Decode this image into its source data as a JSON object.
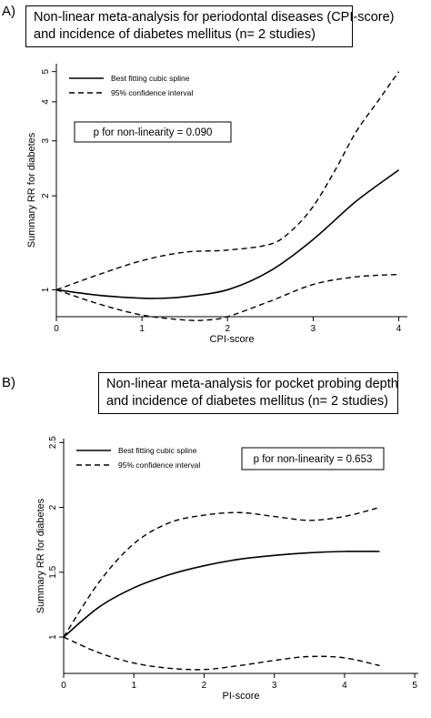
{
  "chart_data": [
    {
      "type": "line",
      "panel_label": "A)",
      "title_lines": [
        "Non-linear meta-analysis for periodontal diseases (CPI-score)",
        "and incidence of diabetes mellitus (n= 2 studies)"
      ],
      "xlabel": "CPI-score",
      "ylabel": "Summary RR for diabetes",
      "xlim": [
        0,
        4.1
      ],
      "ylim": [
        0.82,
        5.3
      ],
      "yscale": "log",
      "xticks": [
        0,
        1,
        2,
        3,
        4
      ],
      "yticks": [
        1,
        2,
        3,
        4,
        5
      ],
      "grid": false,
      "legend_placement": "top-left",
      "annotation": "p for non-linearity  =  0.090",
      "series": [
        {
          "name": "Best fitting cubic spline",
          "style": "solid",
          "x": [
            0,
            0.5,
            1,
            1.25,
            1.5,
            2,
            2.5,
            3,
            3.5,
            4
          ],
          "y": [
            1,
            0.96,
            0.94,
            0.94,
            0.95,
            1.0,
            1.15,
            1.45,
            1.92,
            2.42
          ]
        },
        {
          "name": "95% confidence interval",
          "style": "dashed",
          "x": [
            0,
            0.5,
            1,
            1.5,
            2,
            2.5,
            2.75,
            3,
            3.25,
            3.5,
            3.75,
            4
          ],
          "y": [
            1,
            1.12,
            1.24,
            1.32,
            1.34,
            1.4,
            1.55,
            1.85,
            2.4,
            3.2,
            4.0,
            5.0
          ]
        },
        {
          "name": "",
          "style": "dashed",
          "x": [
            0,
            0.5,
            1,
            1.5,
            1.75,
            2,
            2.5,
            3,
            3.5,
            4
          ],
          "y": [
            1,
            0.9,
            0.83,
            0.8,
            0.8,
            0.82,
            0.92,
            1.04,
            1.1,
            1.12
          ]
        }
      ]
    },
    {
      "type": "line",
      "panel_label": "B)",
      "title_lines": [
        "Non-linear meta-analysis for pocket probing depth",
        "and incidence of diabetes mellitus (n= 2 studies)"
      ],
      "xlabel": "PI-score",
      "ylabel": "Summary RR for diabetes",
      "xlim": [
        0,
        5.05
      ],
      "ylim": [
        0.72,
        2.53
      ],
      "yscale": "linear",
      "xticks": [
        0,
        1,
        2,
        3,
        4,
        5
      ],
      "yticks": [
        1,
        1.5,
        2,
        2.5
      ],
      "grid": false,
      "legend_placement": "top-left",
      "annotation": "p for non-linearity  =  0.653",
      "series": [
        {
          "name": "Best fitting cubic spline",
          "style": "solid",
          "x": [
            0,
            0.5,
            1,
            1.5,
            2,
            2.5,
            3,
            3.5,
            4,
            4.5
          ],
          "y": [
            1,
            1.23,
            1.38,
            1.48,
            1.55,
            1.6,
            1.63,
            1.65,
            1.66,
            1.66
          ]
        },
        {
          "name": "95% confidence interval",
          "style": "dashed",
          "x": [
            0,
            0.5,
            1,
            1.5,
            2,
            2.5,
            3,
            3.5,
            4,
            4.5
          ],
          "y": [
            1,
            1.42,
            1.72,
            1.88,
            1.94,
            1.96,
            1.93,
            1.9,
            1.93,
            2.0
          ]
        },
        {
          "name": "",
          "style": "dashed",
          "x": [
            0,
            0.5,
            1,
            1.5,
            2,
            2.5,
            3,
            3.5,
            4,
            4.5
          ],
          "y": [
            1,
            0.88,
            0.8,
            0.76,
            0.75,
            0.78,
            0.82,
            0.85,
            0.84,
            0.78
          ]
        }
      ]
    }
  ]
}
